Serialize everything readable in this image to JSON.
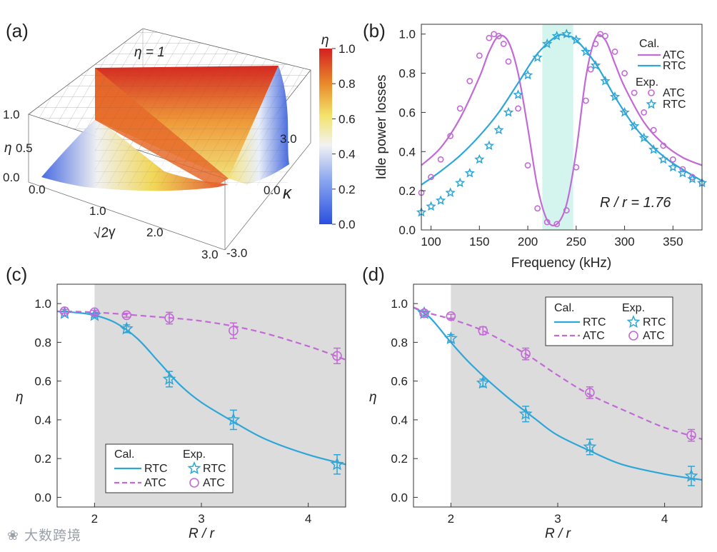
{
  "colors": {
    "atc": "#c26ad6",
    "rtc": "#2ea6d8",
    "shade": "#dcdcdc",
    "highlight": "#c9f2ea"
  },
  "panel_a": {
    "label": "(a)",
    "annotation": "η = 1",
    "z_axis": {
      "title": "η",
      "ticks": [
        "0.0",
        "0.5",
        "1.0"
      ]
    },
    "x_axis": {
      "title": "√2γ",
      "ticks": [
        "0.0",
        "1.0",
        "2.0",
        "3.0"
      ]
    },
    "y_axis": {
      "title": "κ",
      "ticks": [
        "-3.0",
        "0.0",
        "3.0"
      ]
    },
    "colorbar": {
      "title": "η",
      "ticks": [
        "0.0",
        "0.2",
        "0.4",
        "0.6",
        "0.8",
        "1.0"
      ]
    }
  },
  "chart_data": [
    {
      "panel": "(b)",
      "type": "line",
      "xlabel": "Frequency (kHz)",
      "ylabel": "Idle power losses",
      "xlim": [
        90,
        380
      ],
      "ylim": [
        0,
        1.05
      ],
      "xticks": [
        100,
        150,
        200,
        250,
        300,
        350
      ],
      "yticks": [
        "0.0",
        "0.2",
        "0.4",
        "0.6",
        "0.8",
        "1.0"
      ],
      "annotation": "R / r = 1.76",
      "legend": {
        "cal_title": "Cal.",
        "exp_title": "Exp.",
        "cal": [
          "ATC",
          "RTC"
        ],
        "exp": [
          "ATC",
          "RTC"
        ]
      },
      "highlight_band": [
        215,
        247
      ],
      "series": [
        {
          "name": "ATC",
          "kind": "calc",
          "x": [
            90,
            110,
            130,
            150,
            160,
            170,
            180,
            190,
            200,
            210,
            220,
            230,
            240,
            250,
            260,
            270,
            280,
            290,
            300,
            320,
            340,
            360,
            380
          ],
          "y": [
            0.33,
            0.42,
            0.57,
            0.78,
            0.91,
            0.99,
            0.96,
            0.8,
            0.52,
            0.22,
            0.05,
            0.03,
            0.13,
            0.4,
            0.78,
            0.98,
            0.97,
            0.85,
            0.73,
            0.55,
            0.44,
            0.37,
            0.33
          ]
        },
        {
          "name": "RTC",
          "kind": "calc",
          "x": [
            90,
            110,
            130,
            150,
            170,
            190,
            210,
            230,
            240,
            250,
            270,
            290,
            310,
            330,
            350,
            380
          ],
          "y": [
            0.23,
            0.3,
            0.38,
            0.48,
            0.6,
            0.75,
            0.9,
            0.99,
            0.99,
            0.97,
            0.85,
            0.68,
            0.53,
            0.42,
            0.34,
            0.25
          ]
        },
        {
          "name": "ATC",
          "kind": "exp",
          "x": [
            90,
            100,
            110,
            120,
            130,
            140,
            150,
            160,
            165,
            170,
            175,
            180,
            190,
            200,
            210,
            220,
            230,
            240,
            250,
            260,
            265,
            270,
            275,
            280,
            290,
            300,
            310,
            320,
            330,
            340,
            350,
            360,
            370,
            380
          ],
          "y": [
            0.19,
            0.27,
            0.36,
            0.48,
            0.62,
            0.76,
            0.89,
            0.98,
            1.0,
            0.99,
            0.95,
            0.86,
            0.62,
            0.33,
            0.11,
            0.04,
            0.03,
            0.1,
            0.32,
            0.66,
            0.82,
            0.95,
            1.0,
            0.99,
            0.91,
            0.8,
            0.7,
            0.6,
            0.51,
            0.43,
            0.36,
            0.31,
            0.27,
            0.24
          ]
        },
        {
          "name": "RTC",
          "kind": "exp",
          "x": [
            90,
            100,
            110,
            120,
            130,
            140,
            150,
            160,
            170,
            180,
            190,
            200,
            210,
            220,
            230,
            240,
            250,
            260,
            270,
            280,
            290,
            300,
            310,
            320,
            330,
            340,
            350,
            360,
            370,
            380
          ],
          "y": [
            0.09,
            0.12,
            0.15,
            0.19,
            0.24,
            0.29,
            0.36,
            0.43,
            0.51,
            0.6,
            0.69,
            0.79,
            0.88,
            0.95,
            0.99,
            1.0,
            0.97,
            0.91,
            0.84,
            0.76,
            0.68,
            0.6,
            0.53,
            0.47,
            0.41,
            0.36,
            0.32,
            0.29,
            0.26,
            0.24
          ]
        }
      ]
    },
    {
      "panel": "(c)",
      "type": "line",
      "xlabel": "R / r",
      "ylabel": "η",
      "xlim": [
        1.65,
        4.35
      ],
      "ylim": [
        -0.05,
        1.1
      ],
      "xticks": [
        2,
        3,
        4
      ],
      "yticks": [
        "0.0",
        "0.2",
        "0.4",
        "0.6",
        "0.8",
        "1.0"
      ],
      "shade_from": 2,
      "legend": {
        "cal_title": "Cal.",
        "exp_title": "Exp.",
        "cal": [
          "RTC",
          "ATC"
        ],
        "exp": [
          "RTC",
          "ATC"
        ]
      },
      "series": [
        {
          "name": "RTC",
          "kind": "calc",
          "x": [
            1.65,
            1.8,
            2.0,
            2.2,
            2.4,
            2.6,
            2.8,
            3.0,
            3.3,
            3.6,
            4.0,
            4.35
          ],
          "y": [
            0.96,
            0.955,
            0.94,
            0.9,
            0.82,
            0.7,
            0.58,
            0.49,
            0.39,
            0.3,
            0.22,
            0.17
          ]
        },
        {
          "name": "ATC",
          "kind": "calc",
          "x": [
            1.65,
            2.0,
            2.5,
            3.0,
            3.5,
            4.0,
            4.35
          ],
          "y": [
            0.96,
            0.955,
            0.935,
            0.91,
            0.86,
            0.78,
            0.71
          ]
        },
        {
          "name": "RTC",
          "kind": "exp",
          "x": [
            1.72,
            2.0,
            2.3,
            2.7,
            3.3,
            4.27
          ],
          "y": [
            0.95,
            0.94,
            0.87,
            0.61,
            0.4,
            0.17
          ],
          "err": [
            0.01,
            0.01,
            0.02,
            0.04,
            0.05,
            0.05
          ]
        },
        {
          "name": "ATC",
          "kind": "exp",
          "x": [
            1.72,
            2.0,
            2.3,
            2.7,
            3.3,
            4.27
          ],
          "y": [
            0.96,
            0.955,
            0.94,
            0.925,
            0.86,
            0.73
          ],
          "err": [
            0.01,
            0.01,
            0.01,
            0.03,
            0.04,
            0.04
          ]
        }
      ]
    },
    {
      "panel": "(d)",
      "type": "line",
      "xlabel": "R / r",
      "ylabel": "η",
      "xlim": [
        1.65,
        4.35
      ],
      "ylim": [
        -0.05,
        1.1
      ],
      "xticks": [
        2,
        3,
        4
      ],
      "yticks": [
        "0.0",
        "0.2",
        "0.4",
        "0.6",
        "0.8",
        "1.0"
      ],
      "shade_from": 2,
      "legend": {
        "cal_title": "Cal.",
        "exp_title": "Exp.",
        "cal": [
          "RTC",
          "ATC"
        ],
        "exp": [
          "RTC",
          "ATC"
        ]
      },
      "series": [
        {
          "name": "RTC",
          "kind": "calc",
          "x": [
            1.65,
            1.8,
            2.0,
            2.2,
            2.5,
            2.8,
            3.0,
            3.3,
            3.6,
            4.0,
            4.35
          ],
          "y": [
            0.98,
            0.93,
            0.8,
            0.68,
            0.53,
            0.4,
            0.32,
            0.24,
            0.17,
            0.12,
            0.09
          ]
        },
        {
          "name": "ATC",
          "kind": "calc",
          "x": [
            1.65,
            1.8,
            2.0,
            2.3,
            2.7,
            3.0,
            3.3,
            3.7,
            4.0,
            4.35
          ],
          "y": [
            0.98,
            0.95,
            0.92,
            0.86,
            0.74,
            0.63,
            0.53,
            0.43,
            0.36,
            0.3
          ]
        },
        {
          "name": "RTC",
          "kind": "exp",
          "x": [
            1.75,
            2.0,
            2.3,
            2.7,
            3.3,
            4.25
          ],
          "y": [
            0.95,
            0.82,
            0.59,
            0.43,
            0.26,
            0.11
          ],
          "err": [
            0.01,
            0.02,
            0.02,
            0.04,
            0.04,
            0.05
          ]
        },
        {
          "name": "ATC",
          "kind": "exp",
          "x": [
            1.75,
            2.0,
            2.3,
            2.7,
            3.3,
            4.25
          ],
          "y": [
            0.95,
            0.935,
            0.86,
            0.74,
            0.54,
            0.32
          ],
          "err": [
            0.01,
            0.01,
            0.02,
            0.03,
            0.03,
            0.03
          ]
        }
      ]
    }
  ]
}
